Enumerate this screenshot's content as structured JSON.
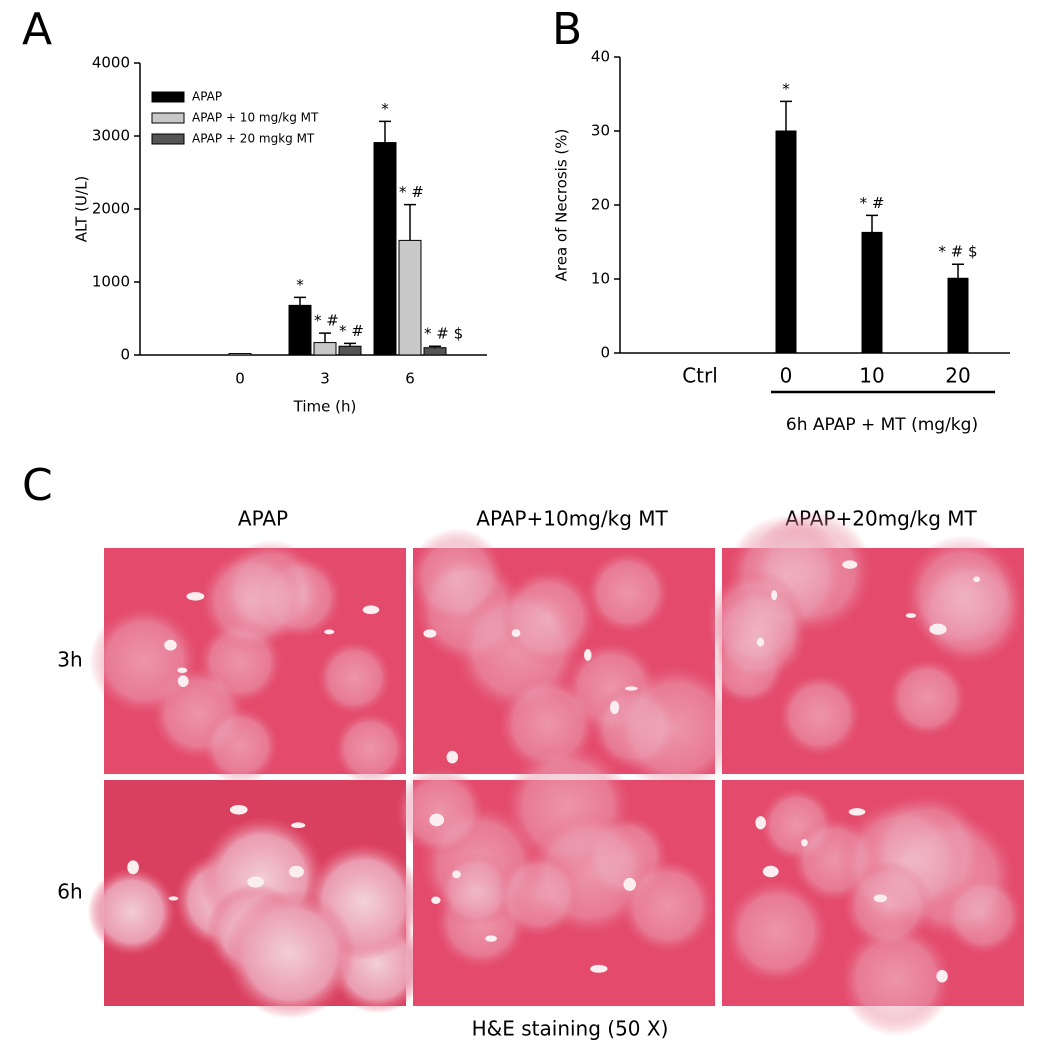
{
  "chart_data": [
    {
      "type": "bar",
      "panel": "A",
      "y_label": "ALT (U/L)",
      "x_label": "Time (h)",
      "categories": [
        "0",
        "3",
        "6"
      ],
      "ylim": [
        0,
        4000
      ],
      "yticks": [
        0,
        1000,
        2000,
        3000,
        4000
      ],
      "legend": "upper left",
      "series": [
        {
          "name": "APAP",
          "color": "#000000",
          "values": [
            null,
            680,
            2910
          ],
          "errors": [
            null,
            110,
            290
          ],
          "labels": [
            null,
            "*",
            "*"
          ]
        },
        {
          "name": "APAP + 10 mg/kg MT",
          "color": "#c8c8c8",
          "values": [
            20,
            170,
            1570
          ],
          "errors": [
            null,
            130,
            490
          ],
          "labels": [
            null,
            "* #",
            "* #"
          ]
        },
        {
          "name": "APAP + 20 mgkg MT",
          "color": "#555555",
          "values": [
            null,
            120,
            100
          ],
          "errors": [
            null,
            40,
            20
          ],
          "labels": [
            null,
            "* #",
            "* # $"
          ]
        }
      ]
    },
    {
      "type": "bar",
      "panel": "B",
      "y_label": "Area of Necrosis (%)",
      "group_label": "6h APAP + MT (mg/kg)",
      "categories": [
        "Ctrl",
        "0",
        "10",
        "20"
      ],
      "ylim": [
        0,
        40
      ],
      "yticks": [
        0,
        10,
        20,
        30,
        40
      ],
      "color": "#000000",
      "values": [
        null,
        30,
        16.3,
        10.1
      ],
      "errors": [
        null,
        4,
        2.3,
        1.9
      ],
      "labels": [
        null,
        "*",
        "* #",
        "* # $"
      ]
    }
  ],
  "histology": {
    "panel": "C",
    "columns": [
      "APAP",
      "APAP+10mg/kg MT",
      "APAP+20mg/kg MT"
    ],
    "rows": [
      "3h",
      "6h"
    ],
    "caption": "H&E staining (50 X)"
  }
}
